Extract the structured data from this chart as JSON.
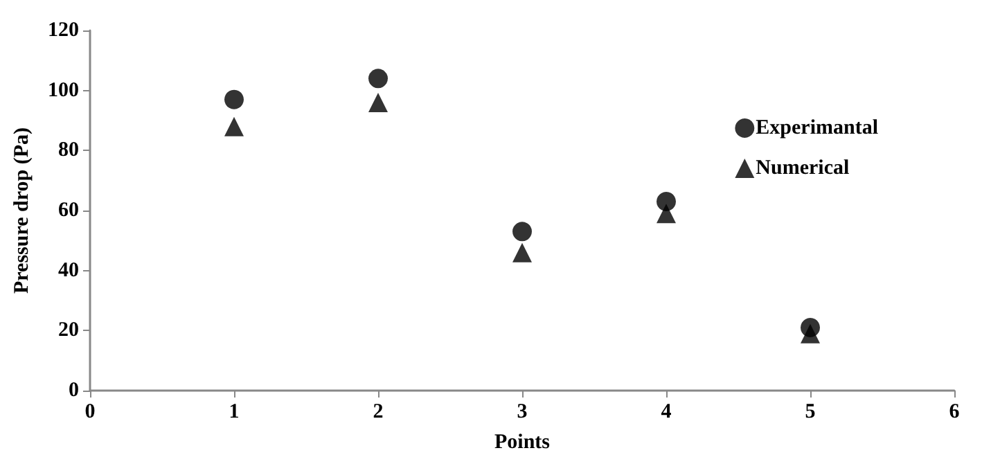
{
  "chart_data": {
    "type": "scatter",
    "xlabel": "Points",
    "ylabel": "Pressure drop (Pa)",
    "x": [
      1,
      2,
      3,
      4,
      5
    ],
    "series": [
      {
        "name": "Experimantal",
        "color": "#000000",
        "marker": "circle",
        "values": [
          97,
          104,
          53,
          63,
          21
        ]
      },
      {
        "name": "Numerical",
        "color": "#000000",
        "marker": "triangle",
        "values": [
          88,
          96,
          46,
          59,
          19
        ]
      }
    ],
    "xlim": [
      0,
      6
    ],
    "xticks": [
      0,
      1,
      2,
      3,
      4,
      5,
      6
    ],
    "ylim": [
      0,
      120
    ],
    "yticks": [
      0,
      20,
      40,
      60,
      80,
      100,
      120
    ],
    "grid": false,
    "legend": "top right"
  }
}
